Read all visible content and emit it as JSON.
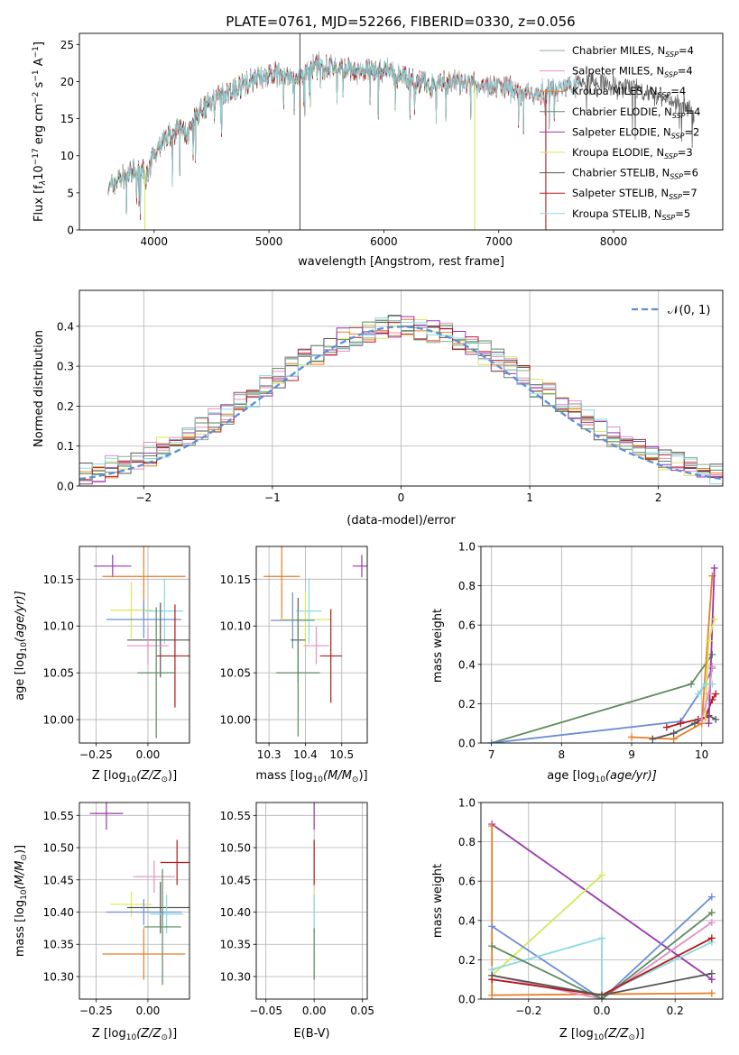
{
  "title": "PLATE=0761, MJD=52266, FIBERID=0330, z=0.056",
  "colors": {
    "Chabrier MILES": "#8ba89a",
    "Salpeter MILES": "#e58fc4",
    "Kroupa MILES": "#e87e24",
    "Chabrier ELODIE": "#5e8a5e",
    "Salpeter ELODIE": "#9b35b0",
    "Kroupa ELODIE": "#d6e85a",
    "Chabrier STELIB": "#555555",
    "Salpeter STELIB": "#b51a1a",
    "Kroupa STELIB": "#86dbe0",
    "extra": "#6a8ed8"
  },
  "chart_data": [
    {
      "id": "spectrum",
      "type": "line",
      "xlabel": "wavelength [Angstrom, rest frame]",
      "ylabel": "Flux [f",
      "ylabel_sub": "λ",
      "ylabel_rest": "10",
      "ylabel_exp1": "−17",
      "ylabel_mid": " erg cm",
      "ylabel_exp2": "−2",
      "ylabel_mid2": " s",
      "ylabel_exp3": "−1",
      "ylabel_end": " A",
      "ylabel_exp4": "−1",
      "ylabel_close": "]",
      "xlim": [
        3350,
        8950
      ],
      "ylim": [
        0,
        26.5
      ],
      "xticks": [
        4000,
        5000,
        6000,
        7000,
        8000
      ],
      "yticks": [
        0,
        5,
        10,
        15,
        20,
        25
      ],
      "legend_position": "top-right",
      "legend": [
        {
          "prefix": "Chabrier MILES, N",
          "sub": "SSP",
          "suffix": "=4",
          "color_key": "Chabrier MILES"
        },
        {
          "prefix": "Salpeter MILES, N",
          "sub": "SSP",
          "suffix": "=4",
          "color_key": "Salpeter MILES"
        },
        {
          "prefix": "Kroupa MILES, N",
          "sub": "SSP",
          "suffix": "=4",
          "color_key": "Kroupa MILES"
        },
        {
          "prefix": "Chabrier ELODIE, N",
          "sub": "SSP",
          "suffix": "=4",
          "color_key": "Chabrier ELODIE"
        },
        {
          "prefix": "Salpeter ELODIE, N",
          "sub": "SSP",
          "suffix": "=2",
          "color_key": "Salpeter ELODIE"
        },
        {
          "prefix": "Kroupa ELODIE, N",
          "sub": "SSP",
          "suffix": "=3",
          "color_key": "Kroupa ELODIE"
        },
        {
          "prefix": "Chabrier STELIB, N",
          "sub": "SSP",
          "suffix": "=6",
          "color_key": "Chabrier STELIB"
        },
        {
          "prefix": "Salpeter STELIB, N",
          "sub": "SSP",
          "suffix": "=7",
          "color_key": "Salpeter STELIB"
        },
        {
          "prefix": "Kroupa STELIB, N",
          "sub": "SSP",
          "suffix": "=5",
          "color_key": "Kroupa STELIB"
        }
      ],
      "continuum": [
        [
          3600,
          5.5
        ],
        [
          3700,
          7
        ],
        [
          3800,
          7.5
        ],
        [
          3900,
          8
        ],
        [
          3950,
          7
        ],
        [
          4000,
          10.5
        ],
        [
          4100,
          12.5
        ],
        [
          4200,
          13.5
        ],
        [
          4300,
          13
        ],
        [
          4400,
          16
        ],
        [
          4500,
          17.5
        ],
        [
          4700,
          19
        ],
        [
          4900,
          20.5
        ],
        [
          5100,
          21
        ],
        [
          5200,
          20
        ],
        [
          5400,
          22
        ],
        [
          5600,
          22
        ],
        [
          5800,
          21
        ],
        [
          6000,
          21.5
        ],
        [
          6200,
          20.5
        ],
        [
          6400,
          19.5
        ],
        [
          6600,
          20
        ],
        [
          6800,
          19.5
        ],
        [
          7000,
          19.5
        ],
        [
          7200,
          18.5
        ],
        [
          7400,
          18.5
        ],
        [
          7600,
          19.5
        ],
        [
          7800,
          20
        ],
        [
          8000,
          19.5
        ],
        [
          8200,
          19
        ],
        [
          8400,
          18
        ],
        [
          8600,
          17
        ],
        [
          8700,
          16
        ]
      ],
      "spikes": [
        {
          "x": 3920,
          "ymin": 0,
          "ymax": 8,
          "color_key": "Kroupa ELODIE"
        },
        {
          "x": 5270,
          "ymin": 0,
          "ymax": 26.5,
          "color_key": "Chabrier STELIB"
        },
        {
          "x": 6790,
          "ymin": 0,
          "ymax": 19.5,
          "color_key": "Kroupa ELODIE"
        },
        {
          "x": 7410,
          "ymin": 0,
          "ymax": 19,
          "color_key": "Salpeter STELIB"
        }
      ]
    },
    {
      "id": "residuals",
      "type": "line",
      "xlabel": "(data-model)/error",
      "ylabel": "Normed distribution",
      "xlim": [
        -2.5,
        2.5
      ],
      "ylim": [
        0,
        0.49
      ],
      "xticks": [
        -2,
        -1,
        0,
        1,
        2
      ],
      "yticks": [
        0.0,
        0.1,
        0.2,
        0.3,
        0.4
      ],
      "grid": true,
      "legend_position": "top-right",
      "legend_label": "𝒩(0, 1)",
      "bin_width": 0.1
    },
    {
      "id": "age-vs-Z",
      "type": "scatter",
      "xlabel": "Z [log",
      "xlabel_sub": "10",
      "xlabel_rest": "(Z/Z",
      "xlabel_sub2": "⊙",
      "xlabel_end": ")]",
      "ylabel": "age  [log",
      "ylabel_sub": "10",
      "ylabel_rest": "(age/yr)]",
      "xlim": [
        -0.33,
        0.2
      ],
      "ylim": [
        9.975,
        10.185
      ],
      "xticks": [
        -0.25,
        0.0
      ],
      "yticks": [
        10.0,
        10.05,
        10.1,
        10.15
      ],
      "grid": true,
      "points": [
        {
          "x": -0.17,
          "xerr": 0.09,
          "y": 10.164,
          "yerr": 0.012,
          "color_key": "Salpeter ELODIE"
        },
        {
          "x": -0.02,
          "xerr": 0.2,
          "y": 10.153,
          "yerr": 0.045,
          "color_key": "Kroupa MILES"
        },
        {
          "x": -0.08,
          "xerr": 0.1,
          "y": 10.117,
          "yerr": 0.03,
          "color_key": "Kroupa ELODIE"
        },
        {
          "x": 0.08,
          "xerr": 0.09,
          "y": 10.116,
          "yerr": 0.035,
          "color_key": "Kroupa STELIB"
        },
        {
          "x": -0.02,
          "xerr": 0.18,
          "y": 10.107,
          "yerr": 0.02,
          "color_key": "extra"
        },
        {
          "x": 0.06,
          "xerr": 0.16,
          "y": 10.085,
          "yerr": 0.04,
          "color_key": "Chabrier STELIB"
        },
        {
          "x": 0.0,
          "xerr": 0.1,
          "y": 10.079,
          "yerr": 0.02,
          "color_key": "Salpeter MILES"
        },
        {
          "x": 0.13,
          "xerr": 0.09,
          "y": 10.068,
          "yerr": 0.055,
          "color_key": "Salpeter STELIB"
        },
        {
          "x": 0.04,
          "xerr": 0.09,
          "y": 10.05,
          "yerr": 0.07,
          "color_key": "Chabrier ELODIE"
        }
      ]
    },
    {
      "id": "age-vs-mass",
      "type": "scatter",
      "xlabel": "mass [log",
      "xlabel_sub": "10",
      "xlabel_rest": "(M/M",
      "xlabel_sub2": "⊙",
      "xlabel_end": ")]",
      "xlim": [
        10.265,
        10.57
      ],
      "ylim": [
        9.975,
        10.185
      ],
      "xticks": [
        10.3,
        10.4,
        10.5
      ],
      "yticks": [
        10.0,
        10.05,
        10.1,
        10.15
      ],
      "grid": true,
      "points": [
        {
          "x": 10.335,
          "xerr": 0.05,
          "y": 10.153,
          "yerr": 0.045,
          "color_key": "Kroupa MILES"
        },
        {
          "x": 10.555,
          "xerr": 0.025,
          "y": 10.164,
          "yerr": 0.012,
          "color_key": "Salpeter ELODIE"
        },
        {
          "x": 10.41,
          "xerr": 0.035,
          "y": 10.116,
          "yerr": 0.035,
          "color_key": "Kroupa STELIB"
        },
        {
          "x": 10.4,
          "xerr": 0.07,
          "y": 10.107,
          "yerr": 0.03,
          "color_key": "Kroupa ELODIE"
        },
        {
          "x": 10.365,
          "xerr": 0.06,
          "y": 10.106,
          "yerr": 0.03,
          "color_key": "extra"
        },
        {
          "x": 10.38,
          "xerr": 0.02,
          "y": 10.085,
          "yerr": 0.045,
          "color_key": "Chabrier STELIB"
        },
        {
          "x": 10.43,
          "xerr": 0.035,
          "y": 10.079,
          "yerr": 0.02,
          "color_key": "Salpeter MILES"
        },
        {
          "x": 10.47,
          "xerr": 0.03,
          "y": 10.068,
          "yerr": 0.05,
          "color_key": "Salpeter STELIB"
        },
        {
          "x": 10.38,
          "xerr": 0.06,
          "y": 10.05,
          "yerr": 0.068,
          "color_key": "Chabrier ELODIE"
        }
      ]
    },
    {
      "id": "weights-vs-age",
      "type": "line",
      "xlabel": "age  [log",
      "xlabel_sub": "10",
      "xlabel_rest": "(age/yr)]",
      "ylabel": "mass weight",
      "xlim": [
        6.85,
        10.3
      ],
      "ylim": [
        0,
        1.0
      ],
      "xticks": [
        7,
        8,
        9,
        10
      ],
      "yticks": [
        0.0,
        0.2,
        0.4,
        0.6,
        0.8,
        1.0
      ],
      "grid": true,
      "series": [
        {
          "color_key": "Chabrier ELODIE",
          "x": [
            7.0,
            9.85,
            10.15
          ],
          "y": [
            0.0,
            0.3,
            0.45
          ]
        },
        {
          "color_key": "extra",
          "x": [
            7.0,
            9.7,
            10.05,
            10.15
          ],
          "y": [
            0.0,
            0.11,
            0.3,
            0.38
          ]
        },
        {
          "color_key": "Kroupa MILES",
          "x": [
            9.0,
            9.6,
            10.0,
            10.15
          ],
          "y": [
            0.03,
            0.02,
            0.1,
            0.85
          ]
        },
        {
          "color_key": "Chabrier STELIB",
          "x": [
            9.3,
            9.6,
            9.9,
            10.1,
            10.2
          ],
          "y": [
            0.02,
            0.05,
            0.1,
            0.14,
            0.12
          ]
        },
        {
          "color_key": "Salpeter STELIB",
          "x": [
            9.5,
            9.7,
            9.95,
            10.05,
            10.15,
            10.2
          ],
          "y": [
            0.08,
            0.1,
            0.12,
            0.13,
            0.22,
            0.25
          ]
        },
        {
          "color_key": "Salpeter ELODIE",
          "x": [
            10.1,
            10.18
          ],
          "y": [
            0.1,
            0.89
          ]
        },
        {
          "color_key": "Kroupa ELODIE",
          "x": [
            10.05,
            10.1,
            10.18
          ],
          "y": [
            0.12,
            0.52,
            0.63
          ]
        },
        {
          "color_key": "Kroupa STELIB",
          "x": [
            9.95,
            10.05,
            10.15
          ],
          "y": [
            0.25,
            0.3,
            0.3
          ]
        },
        {
          "color_key": "Salpeter MILES",
          "x": [
            10.0,
            10.1,
            10.15
          ],
          "y": [
            0.12,
            0.25,
            0.39
          ]
        }
      ]
    },
    {
      "id": "mass-vs-Z",
      "type": "scatter",
      "xlabel": "Z [log",
      "xlabel_sub": "10",
      "xlabel_rest": "(Z/Z",
      "xlabel_sub2": "⊙",
      "xlabel_end": ")]",
      "ylabel": "mass [log",
      "ylabel_sub": "10",
      "ylabel_rest": "(M/M",
      "ylabel_sub2": "⊙",
      "ylabel_end": ")]",
      "xlim": [
        -0.33,
        0.2
      ],
      "ylim": [
        10.265,
        10.57
      ],
      "xticks": [
        -0.25,
        0.0
      ],
      "yticks": [
        10.3,
        10.35,
        10.4,
        10.45,
        10.5,
        10.55
      ],
      "grid": true,
      "points": [
        {
          "x": -0.2,
          "xerr": 0.08,
          "y": 10.553,
          "yerr": 0.025,
          "color_key": "Salpeter ELODIE"
        },
        {
          "x": 0.14,
          "xerr": 0.08,
          "y": 10.477,
          "yerr": 0.035,
          "color_key": "Salpeter STELIB"
        },
        {
          "x": 0.03,
          "xerr": 0.1,
          "y": 10.455,
          "yerr": 0.025,
          "color_key": "Salpeter MILES"
        },
        {
          "x": -0.08,
          "xerr": 0.1,
          "y": 10.412,
          "yerr": 0.02,
          "color_key": "Kroupa ELODIE"
        },
        {
          "x": 0.06,
          "xerr": 0.16,
          "y": 10.407,
          "yerr": 0.04,
          "color_key": "Chabrier STELIB"
        },
        {
          "x": -0.02,
          "xerr": 0.18,
          "y": 10.4,
          "yerr": 0.02,
          "color_key": "extra"
        },
        {
          "x": 0.09,
          "xerr": 0.08,
          "y": 10.397,
          "yerr": 0.03,
          "color_key": "Kroupa STELIB"
        },
        {
          "x": 0.07,
          "xerr": 0.09,
          "y": 10.377,
          "yerr": 0.09,
          "color_key": "Chabrier ELODIE"
        },
        {
          "x": -0.02,
          "xerr": 0.2,
          "y": 10.335,
          "yerr": 0.04,
          "color_key": "Kroupa MILES"
        }
      ]
    },
    {
      "id": "mass-vs-ebv",
      "type": "scatter",
      "xlabel": "E(B-V)",
      "xlim": [
        -0.06,
        0.055
      ],
      "ylim": [
        10.265,
        10.57
      ],
      "xticks": [
        -0.05,
        0.0,
        0.05
      ],
      "yticks": [
        10.3,
        10.35,
        10.4,
        10.45,
        10.5,
        10.55
      ],
      "grid": true,
      "points": [
        {
          "x": 0.0,
          "y": 10.553,
          "yerr": 0.025,
          "color_key": "Salpeter ELODIE"
        },
        {
          "x": 0.0,
          "y": 10.477,
          "yerr": 0.035,
          "color_key": "Salpeter STELIB"
        },
        {
          "x": 0.0,
          "y": 10.412,
          "yerr": 0.02,
          "color_key": "Kroupa ELODIE"
        },
        {
          "x": 0.0,
          "y": 10.397,
          "yerr": 0.03,
          "color_key": "Kroupa STELIB"
        },
        {
          "x": 0.0,
          "y": 10.335,
          "yerr": 0.04,
          "color_key": "Chabrier ELODIE"
        }
      ]
    },
    {
      "id": "weights-vs-Z",
      "type": "line",
      "xlabel": "Z [log",
      "xlabel_sub": "10",
      "xlabel_rest": "(Z/Z",
      "xlabel_sub2": "⊙",
      "xlabel_end": ")]",
      "ylabel": "mass weight",
      "xlim": [
        -0.33,
        0.33
      ],
      "ylim": [
        0,
        1.0
      ],
      "xticks": [
        -0.2,
        0.0,
        0.2
      ],
      "yticks": [
        0.0,
        0.2,
        0.4,
        0.6,
        0.8,
        1.0
      ],
      "grid": true,
      "series": [
        {
          "color_key": "Salpeter ELODIE",
          "x": [
            -0.3,
            0.3
          ],
          "y": [
            0.89,
            0.1
          ]
        },
        {
          "color_key": "Kroupa MILES",
          "x": [
            -0.3,
            -0.3,
            0.3
          ],
          "y": [
            0.88,
            0.02,
            0.03
          ]
        },
        {
          "color_key": "Kroupa ELODIE",
          "x": [
            -0.3,
            0.0
          ],
          "y": [
            0.12,
            0.63
          ]
        },
        {
          "color_key": "extra",
          "x": [
            -0.3,
            0.0,
            0.3
          ],
          "y": [
            0.37,
            0.0,
            0.52
          ]
        },
        {
          "color_key": "Kroupa STELIB",
          "x": [
            -0.3,
            0.0,
            0.0,
            0.3
          ],
          "y": [
            0.15,
            0.31,
            0.02,
            0.29
          ]
        },
        {
          "color_key": "Salpeter MILES",
          "x": [
            -0.3,
            0.0,
            0.3
          ],
          "y": [
            0.12,
            0.0,
            0.39
          ]
        },
        {
          "color_key": "Chabrier ELODIE",
          "x": [
            -0.3,
            0.0,
            0.3
          ],
          "y": [
            0.27,
            0.0,
            0.44
          ]
        },
        {
          "color_key": "Salpeter STELIB",
          "x": [
            -0.3,
            0.0,
            0.3
          ],
          "y": [
            0.1,
            0.02,
            0.31
          ]
        },
        {
          "color_key": "Chabrier STELIB",
          "x": [
            -0.3,
            0.0,
            0.3
          ],
          "y": [
            0.12,
            0.02,
            0.13
          ]
        }
      ]
    }
  ]
}
